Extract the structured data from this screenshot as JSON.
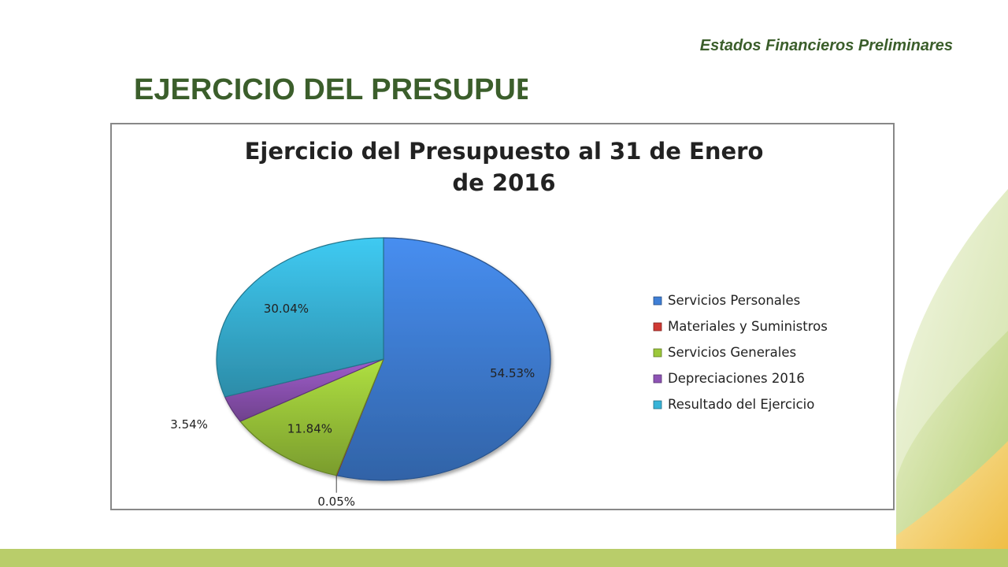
{
  "header": {
    "subtitle": "Estados Financieros Preliminares"
  },
  "slide": {
    "title": "EJERCICIO DEL PRESUPUESTO"
  },
  "chart_data": {
    "type": "pie",
    "title_lines": [
      "Ejercicio del Presupuesto al 31 de Enero",
      "de 2016"
    ],
    "legend_position": "right",
    "series": [
      {
        "name": "Servicios Personales",
        "value": 54.53,
        "label": "54.53%",
        "color": "#3f7fd6"
      },
      {
        "name": "Materiales y Suministros",
        "value": 0.05,
        "label": "0.05%",
        "color": "#d03a34"
      },
      {
        "name": "Servicios Generales",
        "value": 11.84,
        "label": "11.84%",
        "color": "#9cc83a"
      },
      {
        "name": "Depreciaciones 2016",
        "value": 3.54,
        "label": "3.54%",
        "color": "#8e53b5"
      },
      {
        "name": "Resultado del Ejercicio",
        "value": 30.04,
        "label": "30.04%",
        "color": "#38b4d8"
      }
    ]
  },
  "colors": {
    "title_green": "#3b5e2b",
    "band_green": "#b9cd6a",
    "deco_yellow": "#f6c242"
  }
}
